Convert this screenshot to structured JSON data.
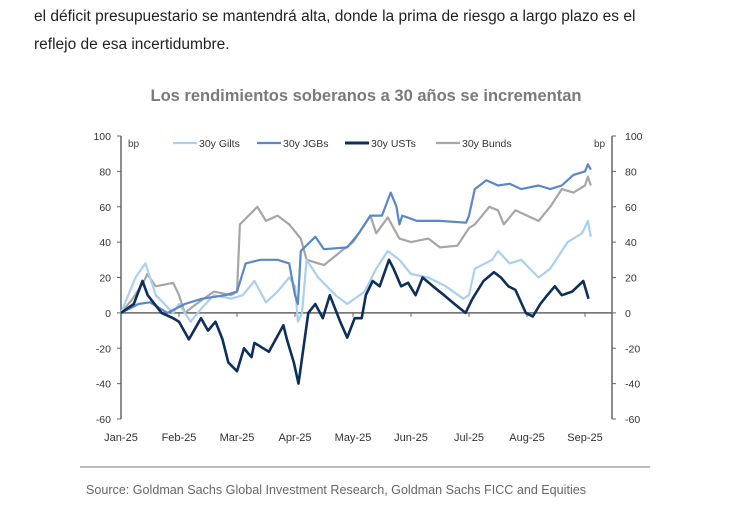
{
  "document": {
    "line1": "el déficit presupuestario se mantendrá alta, donde la prima de riesgo a largo plazo es el",
    "line2": "reflejo de esa incertidumbre."
  },
  "chart_data": {
    "type": "line",
    "title": "Los rendimientos soberanos a 30 años se incrementan",
    "source": "Source: Goldman Sachs Global Investment Research, Goldman Sachs FICC and Equities",
    "ylabel_left": "bp",
    "ylabel_right": "bp",
    "ylim": [
      -60,
      100
    ],
    "yticks": [
      100,
      80,
      60,
      40,
      20,
      0,
      -20,
      -40,
      -60
    ],
    "yticks_right": [
      100,
      80,
      60,
      40,
      20,
      0,
      -20,
      -40,
      -60
    ],
    "x_unit": "months since Jan-25",
    "xlim": [
      0,
      8.35
    ],
    "xticks": [
      "Jan-25",
      "Feb-25",
      "Mar-25",
      "Apr-25",
      "May-25",
      "Jun-25",
      "Jul-25",
      "Aug-25",
      "Sep-25"
    ],
    "legend_position": "top",
    "series": [
      {
        "name": "30y Gilts",
        "color": "#a9d0f0",
        "points": [
          [
            0,
            0
          ],
          [
            0.25,
            20
          ],
          [
            0.42,
            28
          ],
          [
            0.6,
            10
          ],
          [
            0.9,
            0
          ],
          [
            1.0,
            5
          ],
          [
            1.2,
            -5
          ],
          [
            1.4,
            3
          ],
          [
            1.6,
            10
          ],
          [
            1.9,
            8
          ],
          [
            2.1,
            10
          ],
          [
            2.3,
            18
          ],
          [
            2.5,
            6
          ],
          [
            2.7,
            12
          ],
          [
            2.9,
            20
          ],
          [
            3.0,
            15
          ],
          [
            3.05,
            -5
          ],
          [
            3.12,
            0
          ],
          [
            3.2,
            30
          ],
          [
            3.4,
            20
          ],
          [
            3.7,
            10
          ],
          [
            3.9,
            5
          ],
          [
            4.2,
            12
          ],
          [
            4.4,
            25
          ],
          [
            4.6,
            35
          ],
          [
            4.8,
            30
          ],
          [
            5.0,
            22
          ],
          [
            5.3,
            20
          ],
          [
            5.6,
            15
          ],
          [
            5.9,
            8
          ],
          [
            6.0,
            10
          ],
          [
            6.1,
            25
          ],
          [
            6.4,
            30
          ],
          [
            6.5,
            35
          ],
          [
            6.7,
            28
          ],
          [
            6.9,
            30
          ],
          [
            7.2,
            20
          ],
          [
            7.4,
            25
          ],
          [
            7.7,
            40
          ],
          [
            7.95,
            45
          ],
          [
            8.05,
            52
          ],
          [
            8.1,
            43
          ]
        ]
      },
      {
        "name": "30y JGBs",
        "color": "#5b87c6",
        "points": [
          [
            0,
            0
          ],
          [
            0.3,
            5
          ],
          [
            0.5,
            6
          ],
          [
            0.8,
            0
          ],
          [
            1.1,
            5
          ],
          [
            1.4,
            8
          ],
          [
            1.8,
            10
          ],
          [
            2.0,
            12
          ],
          [
            2.15,
            28
          ],
          [
            2.4,
            30
          ],
          [
            2.7,
            30
          ],
          [
            2.9,
            28
          ],
          [
            3.0,
            10
          ],
          [
            3.05,
            5
          ],
          [
            3.1,
            35
          ],
          [
            3.35,
            43
          ],
          [
            3.5,
            36
          ],
          [
            3.9,
            37
          ],
          [
            4.1,
            45
          ],
          [
            4.3,
            55
          ],
          [
            4.5,
            55
          ],
          [
            4.65,
            68
          ],
          [
            4.75,
            60
          ],
          [
            4.8,
            50
          ],
          [
            4.85,
            55
          ],
          [
            5.1,
            52
          ],
          [
            5.5,
            52
          ],
          [
            5.95,
            51
          ],
          [
            6.0,
            55
          ],
          [
            6.1,
            70
          ],
          [
            6.3,
            75
          ],
          [
            6.5,
            72
          ],
          [
            6.7,
            73
          ],
          [
            6.9,
            70
          ],
          [
            7.2,
            72
          ],
          [
            7.4,
            70
          ],
          [
            7.6,
            72
          ],
          [
            7.8,
            78
          ],
          [
            8.0,
            80
          ],
          [
            8.05,
            84
          ],
          [
            8.1,
            81
          ]
        ]
      },
      {
        "name": "30y USTs",
        "color": "#0d2f5c",
        "points": [
          [
            0,
            0
          ],
          [
            0.22,
            5
          ],
          [
            0.37,
            18
          ],
          [
            0.46,
            10
          ],
          [
            0.7,
            0
          ],
          [
            0.9,
            -3
          ],
          [
            1.0,
            -5
          ],
          [
            1.17,
            -15
          ],
          [
            1.38,
            -3
          ],
          [
            1.5,
            -10
          ],
          [
            1.63,
            -5
          ],
          [
            1.75,
            -15
          ],
          [
            1.85,
            -28
          ],
          [
            2.0,
            -33
          ],
          [
            2.12,
            -20
          ],
          [
            2.25,
            -25
          ],
          [
            2.3,
            -17
          ],
          [
            2.55,
            -22
          ],
          [
            2.8,
            -7
          ],
          [
            2.86,
            -15
          ],
          [
            2.98,
            -28
          ],
          [
            3.06,
            -40
          ],
          [
            3.23,
            0
          ],
          [
            3.35,
            5
          ],
          [
            3.48,
            -3
          ],
          [
            3.6,
            10
          ],
          [
            3.78,
            -5
          ],
          [
            3.9,
            -14
          ],
          [
            4.03,
            -3
          ],
          [
            4.15,
            -3
          ],
          [
            4.22,
            10
          ],
          [
            4.34,
            18
          ],
          [
            4.46,
            15
          ],
          [
            4.62,
            30
          ],
          [
            4.7,
            25
          ],
          [
            4.83,
            15
          ],
          [
            4.95,
            17
          ],
          [
            5.08,
            10
          ],
          [
            5.2,
            20
          ],
          [
            5.38,
            15
          ],
          [
            5.57,
            10
          ],
          [
            5.75,
            5
          ],
          [
            5.94,
            0
          ],
          [
            6.06,
            8
          ],
          [
            6.25,
            18
          ],
          [
            6.43,
            23
          ],
          [
            6.55,
            20
          ],
          [
            6.68,
            15
          ],
          [
            6.8,
            13
          ],
          [
            6.98,
            0
          ],
          [
            7.1,
            -2
          ],
          [
            7.23,
            5
          ],
          [
            7.35,
            10
          ],
          [
            7.48,
            15
          ],
          [
            7.6,
            10
          ],
          [
            7.78,
            12
          ],
          [
            7.97,
            18
          ],
          [
            8.06,
            8
          ]
        ]
      },
      {
        "name": "30y Bunds",
        "color": "#a6a6a6",
        "points": [
          [
            0,
            0
          ],
          [
            0.2,
            8
          ],
          [
            0.4,
            18
          ],
          [
            0.45,
            22
          ],
          [
            0.6,
            15
          ],
          [
            0.9,
            17
          ],
          [
            1.0,
            10
          ],
          [
            1.1,
            0
          ],
          [
            1.3,
            5
          ],
          [
            1.6,
            12
          ],
          [
            1.9,
            10
          ],
          [
            2.0,
            12
          ],
          [
            2.05,
            50
          ],
          [
            2.2,
            55
          ],
          [
            2.35,
            60
          ],
          [
            2.5,
            52
          ],
          [
            2.7,
            55
          ],
          [
            2.9,
            50
          ],
          [
            3.1,
            42
          ],
          [
            3.2,
            30
          ],
          [
            3.5,
            27
          ],
          [
            3.8,
            35
          ],
          [
            4.0,
            40
          ],
          [
            4.3,
            55
          ],
          [
            4.4,
            45
          ],
          [
            4.6,
            54
          ],
          [
            4.8,
            42
          ],
          [
            5.0,
            40
          ],
          [
            5.3,
            42
          ],
          [
            5.5,
            37
          ],
          [
            5.8,
            38
          ],
          [
            6.0,
            48
          ],
          [
            6.1,
            50
          ],
          [
            6.35,
            60
          ],
          [
            6.5,
            58
          ],
          [
            6.6,
            50
          ],
          [
            6.8,
            58
          ],
          [
            7.0,
            55
          ],
          [
            7.2,
            52
          ],
          [
            7.4,
            60
          ],
          [
            7.6,
            70
          ],
          [
            7.8,
            68
          ],
          [
            8.0,
            72
          ],
          [
            8.05,
            77
          ],
          [
            8.1,
            72
          ]
        ]
      }
    ]
  }
}
